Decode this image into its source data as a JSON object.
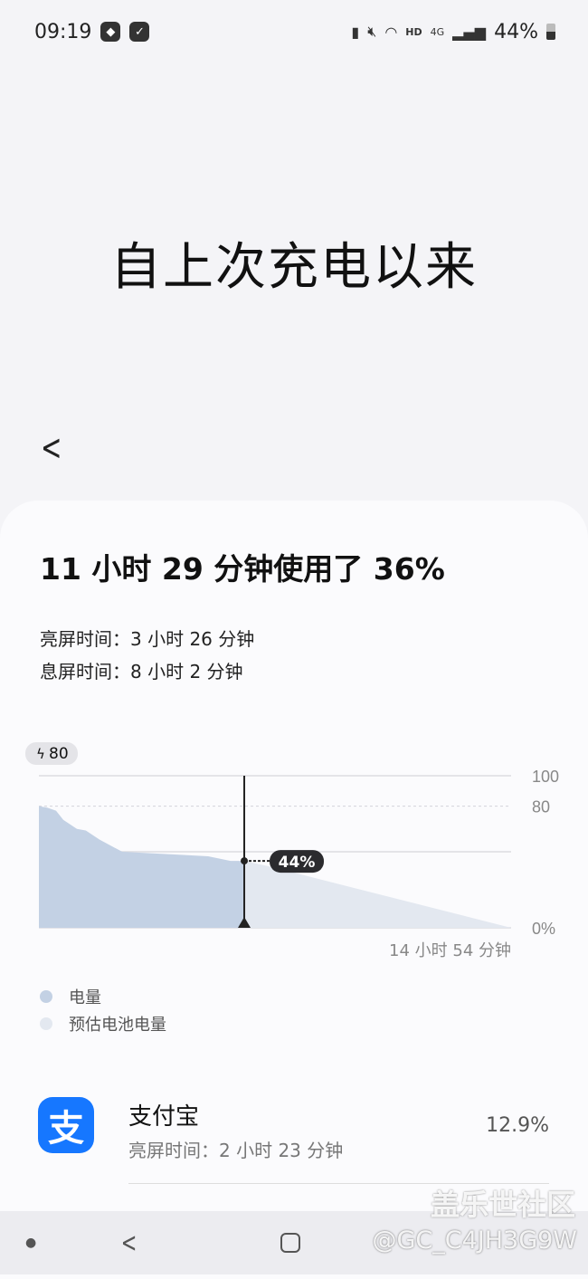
{
  "status_bar": {
    "time": "09:19",
    "battery": "44%",
    "network": "4G",
    "wifi_label": "HD",
    "icons": [
      "maps-badge-icon",
      "check-icon",
      "battery-saver-icon",
      "mute-icon",
      "wifi-icon",
      "signal-icon",
      "battery-icon"
    ]
  },
  "header": {
    "title": "自上次充电以来",
    "back_icon": "chevron-left-icon"
  },
  "summary": {
    "headline": "11 小时 29 分钟使用了 36%",
    "screen_on": "亮屏时间：3 小时 26 分钟",
    "screen_off": "息屏时间：8 小时 2 分钟"
  },
  "chart_data": {
    "type": "area",
    "charge_badge": "80",
    "y_ticks": [
      "100",
      "80",
      "0%"
    ],
    "ylim": [
      0,
      100
    ],
    "x_end_label": "14 小时 54 分钟",
    "current_label": "44%",
    "series": [
      {
        "name": "电量",
        "color": "#c3d1e4",
        "x": [
          0,
          0.26,
          0.54,
          0.77,
          1.2,
          1.48,
          1.91,
          2.63,
          4.48,
          5.34,
          6.05,
          6.48
        ],
        "y": [
          80,
          79,
          77,
          71,
          65,
          64,
          58,
          50,
          48,
          47,
          44,
          44
        ]
      },
      {
        "name": "预估电池电量",
        "color": "#e3e8f0",
        "x": [
          6.48,
          7.34,
          14.9
        ],
        "y": [
          44,
          40,
          0
        ]
      }
    ]
  },
  "apps": [
    {
      "name": "支付宝",
      "icon_glyph": "支",
      "detail": "亮屏时间：2 小时 23 分钟",
      "percent": "12.9%",
      "color": "#1677ff"
    }
  ],
  "watermark": {
    "line1": "盖乐世社区",
    "line2": "@GC_C4JH3G9W"
  }
}
